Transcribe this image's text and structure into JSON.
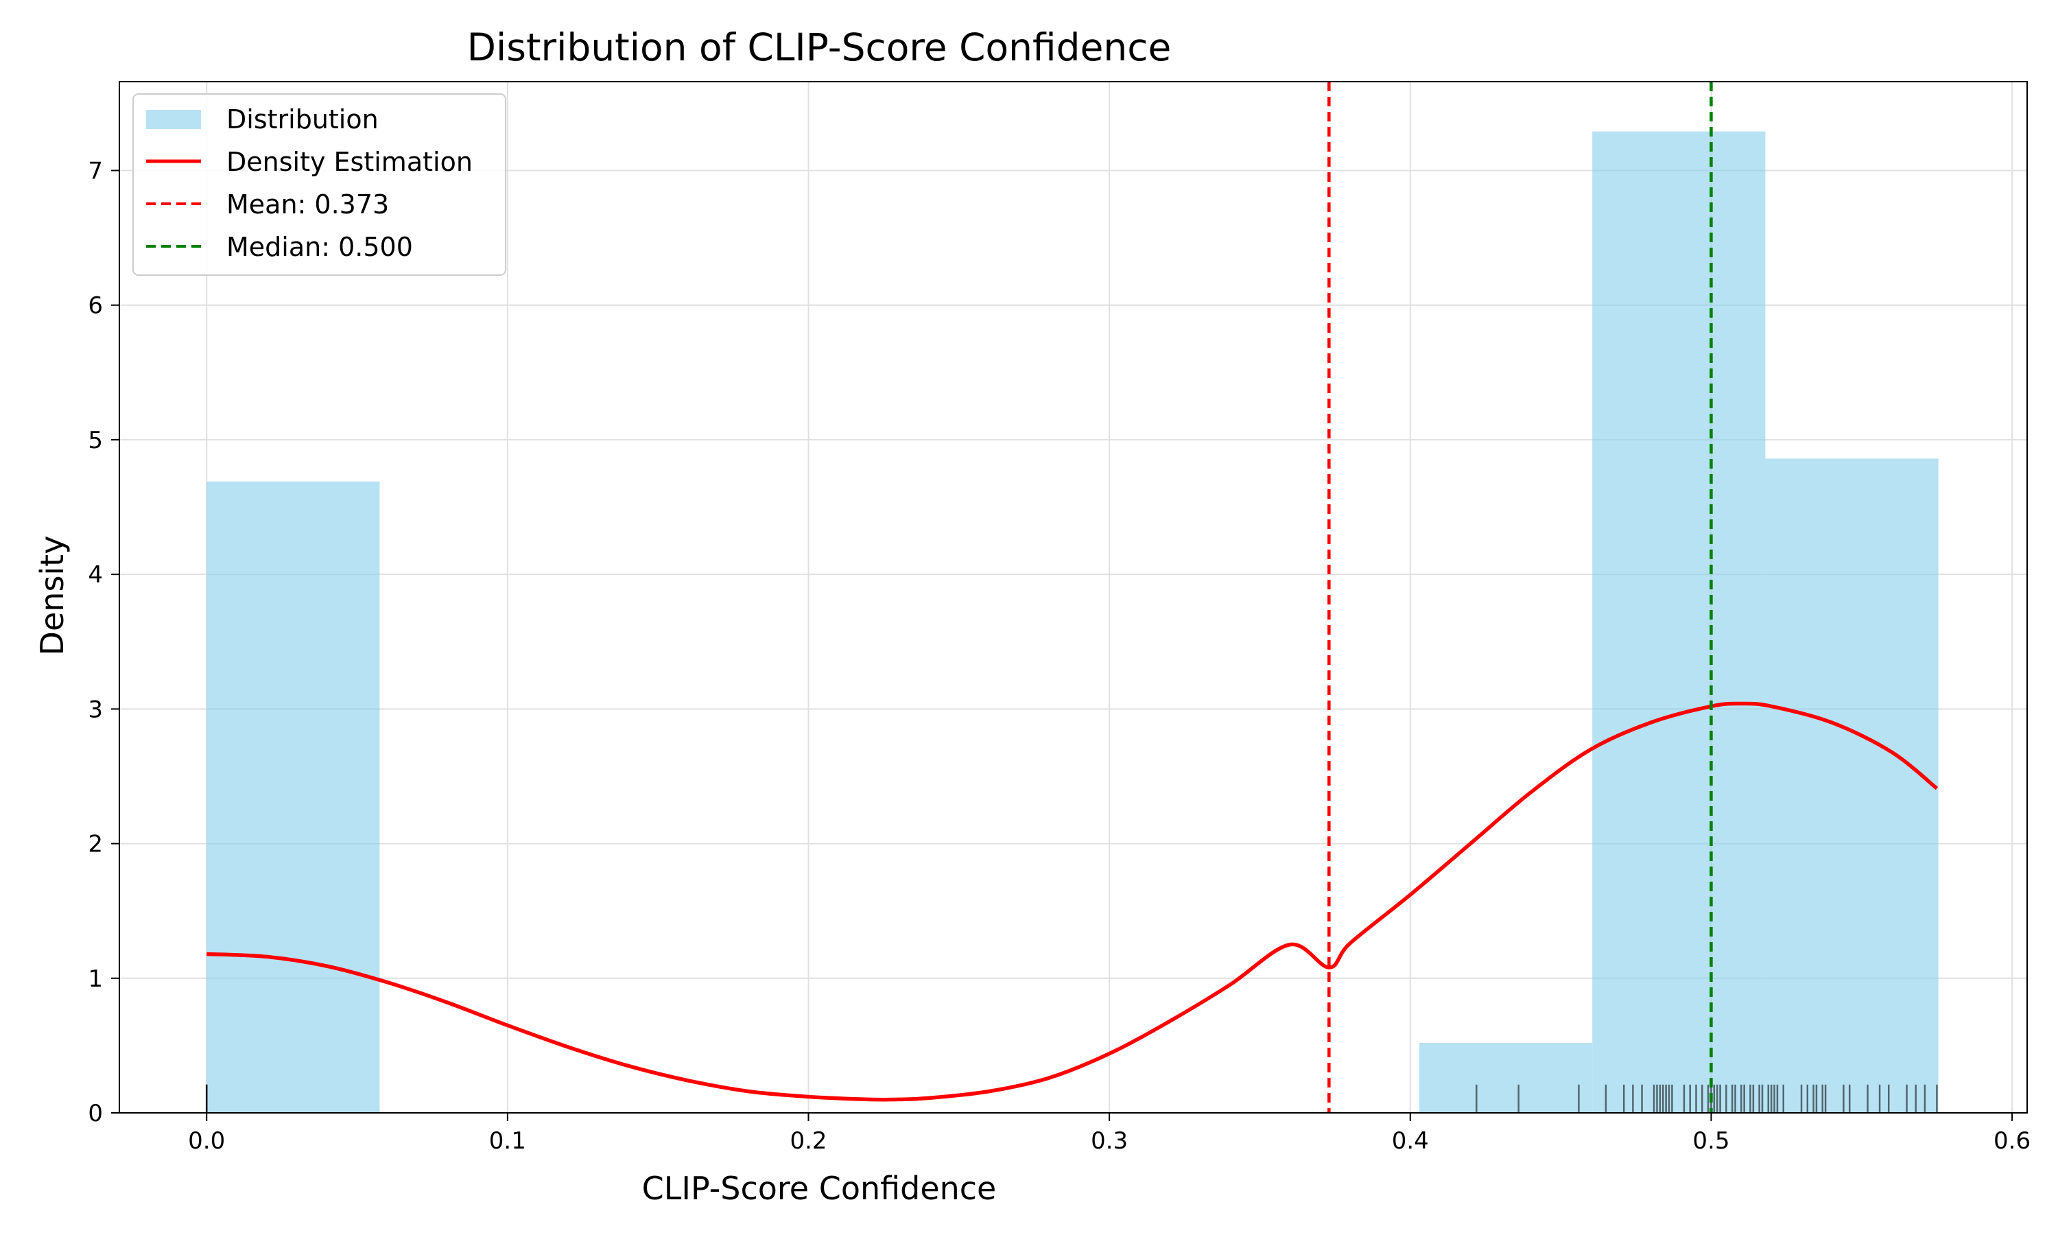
{
  "chart_data": {
    "type": "bar",
    "title": "Distribution of CLIP-Score Confidence",
    "xlabel": "CLIP-Score Confidence",
    "ylabel": "Density",
    "xlim": [
      -0.029,
      0.605
    ],
    "ylim": [
      0,
      7.66
    ],
    "grid": true,
    "legend_position": "top-left",
    "x_ticks": [
      {
        "value": 0.0,
        "label": "0.0"
      },
      {
        "value": 0.1,
        "label": "0.1"
      },
      {
        "value": 0.2,
        "label": "0.2"
      },
      {
        "value": 0.3,
        "label": "0.3"
      },
      {
        "value": 0.4,
        "label": "0.4"
      },
      {
        "value": 0.5,
        "label": "0.5"
      },
      {
        "value": 0.6,
        "label": "0.6"
      }
    ],
    "y_ticks": [
      {
        "value": 0,
        "label": "0"
      },
      {
        "value": 1,
        "label": "1"
      },
      {
        "value": 2,
        "label": "2"
      },
      {
        "value": 3,
        "label": "3"
      },
      {
        "value": 4,
        "label": "4"
      },
      {
        "value": 5,
        "label": "5"
      },
      {
        "value": 6,
        "label": "6"
      },
      {
        "value": 7,
        "label": "7"
      }
    ],
    "histogram": {
      "name": "Distribution",
      "color": "#87ceeb",
      "bins": [
        {
          "x0": 0.0,
          "x1": 0.0575,
          "value": 4.69
        },
        {
          "x0": 0.403,
          "x1": 0.4605,
          "value": 0.52
        },
        {
          "x0": 0.4605,
          "x1": 0.518,
          "value": 7.29
        },
        {
          "x0": 0.518,
          "x1": 0.5755,
          "value": 4.86
        }
      ]
    },
    "density_curve": {
      "name": "Density Estimation",
      "color": "#ff0000",
      "x": [
        0.0,
        0.02,
        0.04,
        0.06,
        0.08,
        0.1,
        0.12,
        0.14,
        0.16,
        0.18,
        0.2,
        0.22,
        0.23,
        0.24,
        0.26,
        0.28,
        0.3,
        0.32,
        0.34,
        0.36,
        0.373,
        0.38,
        0.4,
        0.42,
        0.44,
        0.46,
        0.48,
        0.5,
        0.51,
        0.52,
        0.54,
        0.56,
        0.575
      ],
      "y": [
        1.18,
        1.16,
        1.09,
        0.97,
        0.82,
        0.65,
        0.49,
        0.35,
        0.24,
        0.16,
        0.12,
        0.1,
        0.1,
        0.11,
        0.16,
        0.26,
        0.44,
        0.68,
        0.95,
        1.25,
        1.08,
        1.26,
        1.62,
        2.0,
        2.38,
        2.7,
        2.9,
        3.02,
        3.04,
        3.02,
        2.9,
        2.68,
        2.41
      ]
    },
    "mean_line": {
      "name": "Mean: 0.373",
      "value": 0.373,
      "color": "#ff0000"
    },
    "median_line": {
      "name": "Median: 0.500",
      "value": 0.5,
      "color": "#008000"
    },
    "rug": {
      "color": "#000000",
      "height": 0.21,
      "values": [
        0.0,
        0.0,
        0.0,
        0.422,
        0.436,
        0.456,
        0.465,
        0.471,
        0.474,
        0.477,
        0.481,
        0.482,
        0.483,
        0.484,
        0.485,
        0.486,
        0.487,
        0.491,
        0.493,
        0.495,
        0.497,
        0.499,
        0.5,
        0.501,
        0.502,
        0.503,
        0.505,
        0.507,
        0.508,
        0.51,
        0.511,
        0.513,
        0.514,
        0.516,
        0.517,
        0.519,
        0.52,
        0.521,
        0.522,
        0.524,
        0.53,
        0.532,
        0.534,
        0.535,
        0.537,
        0.538,
        0.544,
        0.546,
        0.552,
        0.556,
        0.559,
        0.565,
        0.568,
        0.571,
        0.575
      ]
    }
  }
}
